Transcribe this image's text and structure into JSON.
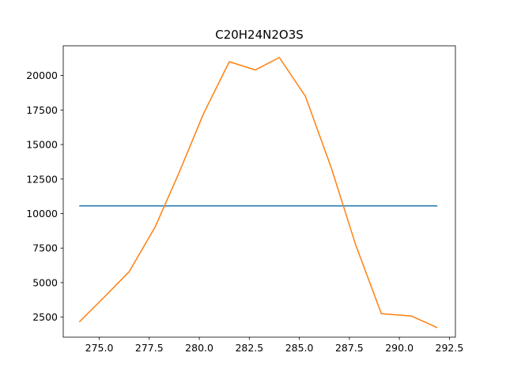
{
  "chart_data": {
    "type": "line",
    "title": "C20H24N2O3S",
    "xlabel": "",
    "ylabel": "",
    "xlim": [
      273.2,
      292.8
    ],
    "ylim": [
      1050,
      22150
    ],
    "grid": false,
    "x_ticks": [
      275.0,
      277.5,
      280.0,
      282.5,
      285.0,
      287.5,
      290.0,
      292.5
    ],
    "x_tick_labels": [
      "275.0",
      "277.5",
      "280.0",
      "282.5",
      "285.0",
      "287.5",
      "290.0",
      "292.5"
    ],
    "y_ticks": [
      2500,
      5000,
      7500,
      10000,
      12500,
      15000,
      17500,
      20000
    ],
    "y_tick_labels": [
      "2500",
      "5000",
      "7500",
      "10000",
      "12500",
      "15000",
      "17500",
      "20000"
    ],
    "series": [
      {
        "color": "#1f77b4",
        "x": [
          274.0,
          291.9
        ],
        "y": [
          10560,
          10560
        ]
      },
      {
        "color": "#ff7f0e",
        "x": [
          274.0,
          275.2,
          276.5,
          277.8,
          279.0,
          280.2,
          281.5,
          282.8,
          284.0,
          285.3,
          286.6,
          287.8,
          289.1,
          290.6,
          291.9
        ],
        "y": [
          2150,
          3880,
          5800,
          9050,
          13000,
          17200,
          21000,
          20400,
          21300,
          18500,
          13300,
          7800,
          2750,
          2580,
          1730
        ]
      }
    ]
  }
}
